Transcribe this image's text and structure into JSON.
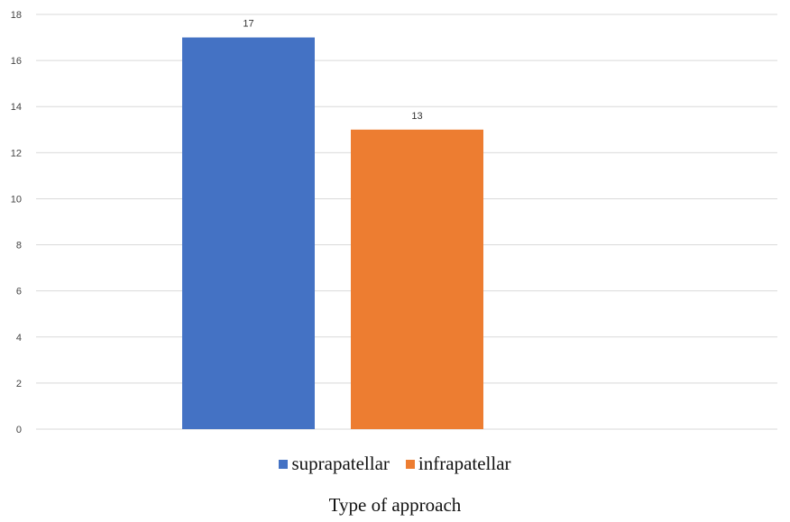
{
  "chart_data": {
    "type": "bar",
    "categories": [
      "suprapatellar",
      "infrapatellar"
    ],
    "values": [
      17,
      13
    ],
    "data_labels": [
      "17",
      "13"
    ],
    "colors": [
      "#4472c4",
      "#ed7d31"
    ],
    "ylim": [
      0,
      18
    ],
    "yticks": [
      0,
      2,
      4,
      6,
      8,
      10,
      12,
      14,
      16,
      18
    ],
    "grid": true,
    "legend_position": "bottom",
    "xlabel": "Type of approach"
  }
}
